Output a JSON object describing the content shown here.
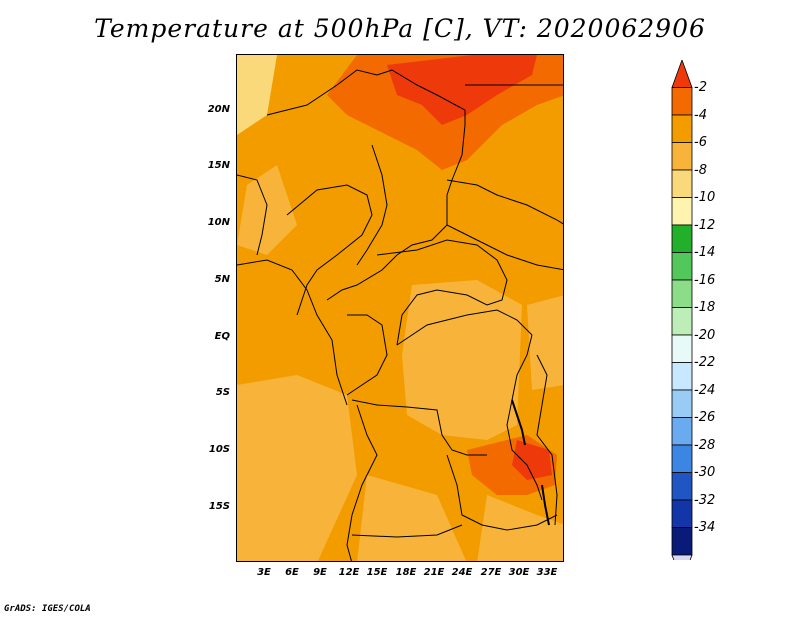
{
  "title": "Temperature at 500hPa [C], VT: 2020062906",
  "credit": "GrADS: IGES/COLA",
  "lat_labels": [
    "20N",
    "15N",
    "10N",
    "5N",
    "EQ",
    "5S",
    "10S",
    "15S"
  ],
  "lon_labels": [
    "3E",
    "6E",
    "9E",
    "12E",
    "15E",
    "18E",
    "21E",
    "24E",
    "27E",
    "30E",
    "33E"
  ],
  "colorbar": {
    "labels": [
      "-2",
      "-4",
      "-6",
      "-8",
      "-10",
      "-12",
      "-14",
      "-16",
      "-18",
      "-20",
      "-22",
      "-24",
      "-26",
      "-28",
      "-30",
      "-32",
      "-34"
    ],
    "colors": [
      "#ee3a0a",
      "#f26a00",
      "#f39c00",
      "#f8b43a",
      "#fad97a",
      "#fff3b0",
      "#22b02a",
      "#53c85a",
      "#8bdd88",
      "#bdeeb8",
      "#e8faf8",
      "#c8e8ff",
      "#98ccf5",
      "#6aaaee",
      "#3b86e2",
      "#2056c4",
      "#1236a8",
      "#0a1a78",
      "#d8d8f0"
    ]
  },
  "field_colors": {
    "t_minus_4_to_2": "#ee3a0a",
    "t_minus_6_to_4": "#f39c00",
    "t_minus_8_to_6": "#f8b43a",
    "t_minus_10_to_8": "#fad97a",
    "t_minus_12_to_10": "#fff3b0"
  }
}
